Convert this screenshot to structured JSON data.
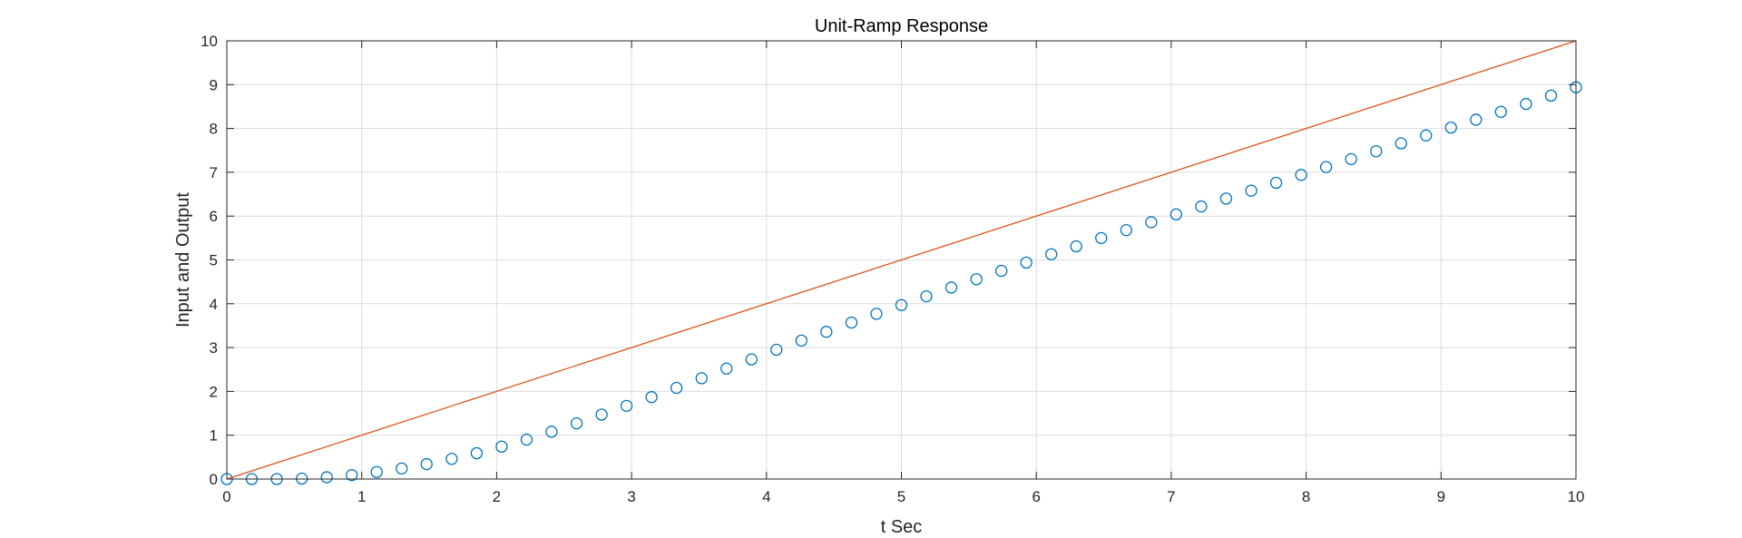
{
  "chart_data": {
    "type": "line",
    "title": "Unit-Ramp Response",
    "xlabel": "t Sec",
    "ylabel": "Input and Output",
    "xlim": [
      0,
      10
    ],
    "ylim": [
      0,
      10
    ],
    "grid": true,
    "xticks": [
      0,
      1,
      2,
      3,
      4,
      5,
      6,
      7,
      8,
      9,
      10
    ],
    "yticks": [
      0,
      1,
      2,
      3,
      4,
      5,
      6,
      7,
      8,
      9,
      10
    ],
    "xtick_labels": [
      "0",
      "1",
      "2",
      "3",
      "4",
      "5",
      "6",
      "7",
      "8",
      "9",
      "10"
    ],
    "ytick_labels": [
      "0",
      "1",
      "2",
      "3",
      "4",
      "5",
      "6",
      "7",
      "8",
      "9",
      "10"
    ],
    "series": [
      {
        "style": "circle-markers",
        "color": "#0072BD",
        "x": [
          0,
          0.185,
          0.37,
          0.556,
          0.741,
          0.926,
          1.111,
          1.296,
          1.481,
          1.667,
          1.852,
          2.037,
          2.222,
          2.407,
          2.593,
          2.778,
          2.963,
          3.148,
          3.333,
          3.519,
          3.704,
          3.889,
          4.074,
          4.259,
          4.444,
          4.63,
          4.815,
          5.0,
          5.185,
          5.37,
          5.556,
          5.741,
          5.926,
          6.111,
          6.296,
          6.481,
          6.667,
          6.852,
          7.037,
          7.222,
          7.407,
          7.593,
          7.778,
          7.963,
          8.148,
          8.333,
          8.519,
          8.704,
          8.889,
          9.074,
          9.259,
          9.444,
          9.63,
          9.815,
          10.0
        ],
        "y": [
          0,
          0.0,
          0.0,
          0.01,
          0.04,
          0.09,
          0.16,
          0.24,
          0.34,
          0.46,
          0.59,
          0.74,
          0.9,
          1.08,
          1.27,
          1.47,
          1.67,
          1.87,
          2.08,
          2.3,
          2.52,
          2.73,
          2.95,
          3.16,
          3.36,
          3.57,
          3.77,
          3.97,
          4.17,
          4.37,
          4.56,
          4.75,
          4.94,
          5.13,
          5.31,
          5.5,
          5.68,
          5.86,
          6.04,
          6.22,
          6.4,
          6.58,
          6.76,
          6.94,
          7.12,
          7.3,
          7.48,
          7.66,
          7.84,
          8.02,
          8.2,
          8.38,
          8.56,
          8.75,
          8.94
        ]
      },
      {
        "style": "line",
        "color": "#D95319",
        "x": [
          0,
          10
        ],
        "y": [
          0,
          10
        ]
      }
    ]
  }
}
